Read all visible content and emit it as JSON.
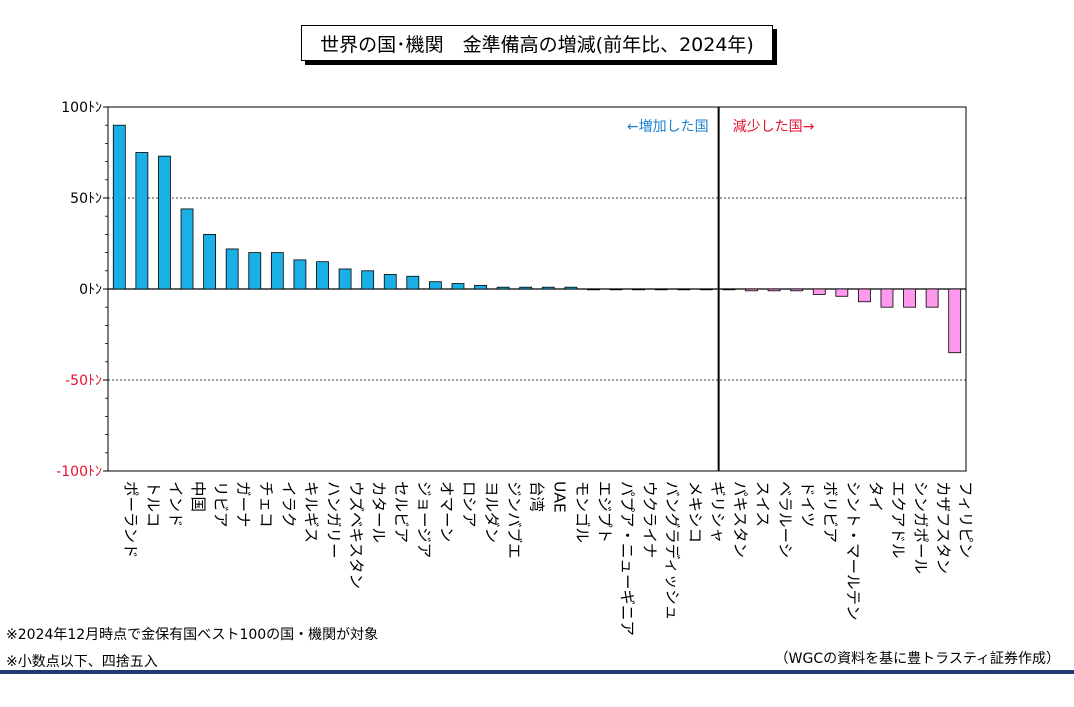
{
  "title": "世界の国･機関　金準備高の増減(前年比、2024年)",
  "notes": {
    "note1": "※2024年12月時点で金保有国ベスト100の国・機関が対象",
    "note2": "※小数点以下、四捨五入",
    "source": "（WGCの資料を基に豊トラスティ証券作成）"
  },
  "annotations": {
    "increase": "←増加した国",
    "decrease": "減少した国→"
  },
  "colors": {
    "increase_bar": "#1ab0e6",
    "decrease_bar": "#ff99ee",
    "negative_tick": "#e8112d",
    "increase_text": "#1f7fd0",
    "decrease_text": "#e8112d"
  },
  "chart_data": {
    "type": "bar",
    "unit": "ﾄﾝ",
    "ylim": [
      -100,
      100
    ],
    "yticks": [
      {
        "value": 100,
        "label": "100ﾄﾝ"
      },
      {
        "value": 50,
        "label": "50ﾄﾝ"
      },
      {
        "value": 0,
        "label": "0ﾄﾝ"
      },
      {
        "value": -50,
        "label": "-50ﾄﾝ"
      },
      {
        "value": -100,
        "label": "-100ﾄﾝ"
      }
    ],
    "grid": "dotted at ±50",
    "categories": [
      "ポーランド",
      "トルコ",
      "インド",
      "中国",
      "リビア",
      "ガーナ",
      "チェコ",
      "イラク",
      "キルギス",
      "ハンガリー",
      "ウズベキスタン",
      "カタール",
      "セルビア",
      "ジョージア",
      "オマーン",
      "ロシア",
      "ヨルダン",
      "ジンバブエ",
      "台湾",
      "UAE",
      "モンゴル",
      "エジプト",
      "パプア・ニューギニア",
      "ウクライナ",
      "バングラディッシュ",
      "メキシコ",
      "ギリシャ",
      "パキスタン",
      "スイス",
      "ベラルーシ",
      "ドイツ",
      "ボリビア",
      "シント・マールテン",
      "タイ",
      "エクアドル",
      "シンガポール",
      "カザフスタン",
      "フィリピン"
    ],
    "values": [
      90,
      75,
      73,
      44,
      30,
      22,
      20,
      20,
      16,
      15,
      11,
      10,
      8,
      7,
      4,
      3,
      2,
      1,
      1,
      1,
      1,
      0,
      0,
      0,
      0,
      0,
      0,
      0,
      -1,
      -1,
      -1,
      -3,
      -4,
      -7,
      -10,
      -10,
      -10,
      -35
    ],
    "split_after_index": 27
  }
}
